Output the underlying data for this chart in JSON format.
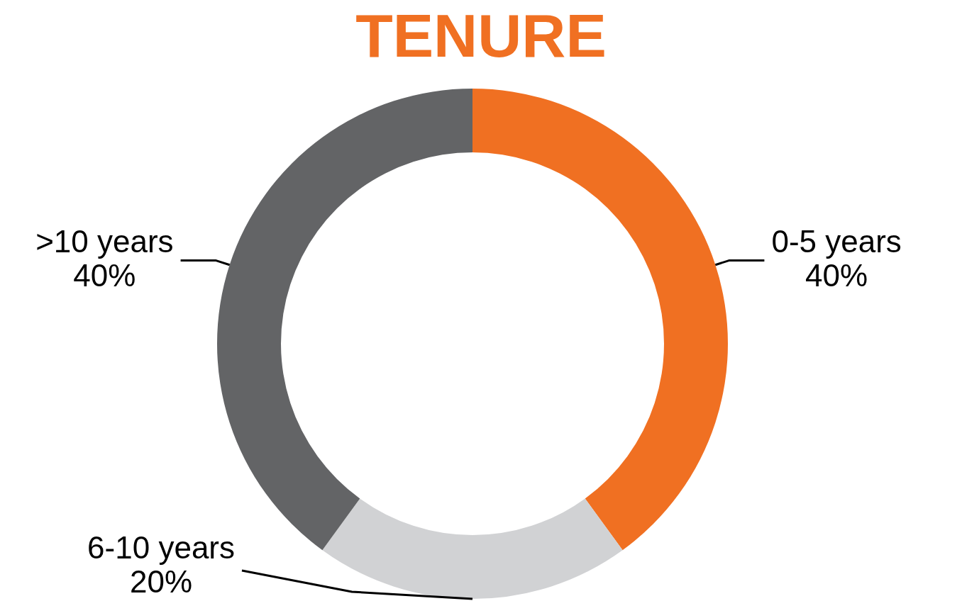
{
  "chart_data": {
    "type": "donut",
    "title": "TENURE",
    "categories": [
      "0-5 years",
      "6-10 years",
      ">10 years"
    ],
    "values": [
      40,
      20,
      40
    ],
    "value_labels": [
      "40%",
      "20%",
      "40%"
    ],
    "colors": [
      "#f07022",
      "#d1d2d4",
      "#636466"
    ],
    "legend": false
  }
}
